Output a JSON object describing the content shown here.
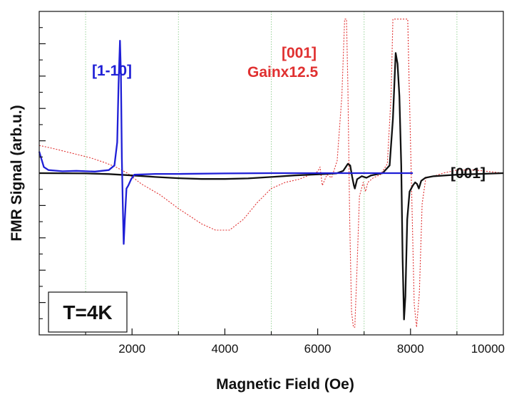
{
  "chart_data": {
    "type": "line",
    "xlabel": "Magnetic Field (Oe)",
    "ylabel": "FMR Signal (arb.u.)",
    "xlim": [
      0,
      10000
    ],
    "ylim": [
      -1.05,
      1.05
    ],
    "x_ticks": [
      2000,
      4000,
      6000,
      8000,
      10000
    ],
    "x_tick_labels": [
      "2000",
      "4000",
      "6000",
      "8000",
      "10000"
    ],
    "x_minor_ticks": [
      1000,
      3000,
      5000,
      7000,
      9000
    ],
    "vertical_gridlines_at": [
      1000,
      3000,
      5000,
      7000,
      9000
    ],
    "gridline_color": "#9ad29a",
    "y_tick_labels_shown": false,
    "series": [
      {
        "name": "[1-10]",
        "color": "#1f1fd6",
        "style": "solid",
        "points": [
          [
            0,
            0.14
          ],
          [
            40,
            0.1
          ],
          [
            100,
            0.04
          ],
          [
            200,
            0.02
          ],
          [
            500,
            0.012
          ],
          [
            800,
            0.015
          ],
          [
            1200,
            0.01
          ],
          [
            1500,
            0.02
          ],
          [
            1620,
            0.05
          ],
          [
            1680,
            0.2
          ],
          [
            1710,
            0.58
          ],
          [
            1740,
            0.86
          ],
          [
            1760,
            0.65
          ],
          [
            1780,
            0.1
          ],
          [
            1800,
            -0.2
          ],
          [
            1820,
            -0.46
          ],
          [
            1845,
            -0.3
          ],
          [
            1880,
            -0.1
          ],
          [
            1920,
            -0.08
          ],
          [
            1980,
            -0.04
          ],
          [
            2050,
            -0.01
          ],
          [
            2500,
            -0.005
          ],
          [
            3000,
            -0.005
          ],
          [
            4000,
            -0.002
          ],
          [
            5000,
            0.0
          ],
          [
            6000,
            0.0
          ],
          [
            7000,
            0.0
          ],
          [
            7700,
            0.0
          ],
          [
            8050,
            0.0
          ]
        ]
      },
      {
        "name": "[001]",
        "color": "#111111",
        "style": "solid",
        "points": [
          [
            0,
            0.0
          ],
          [
            1000,
            -0.002
          ],
          [
            1500,
            -0.006
          ],
          [
            2000,
            -0.015
          ],
          [
            2500,
            -0.025
          ],
          [
            3000,
            -0.033
          ],
          [
            3500,
            -0.038
          ],
          [
            4000,
            -0.038
          ],
          [
            4500,
            -0.034
          ],
          [
            5000,
            -0.025
          ],
          [
            5500,
            -0.015
          ],
          [
            6000,
            -0.008
          ],
          [
            6400,
            -0.002
          ],
          [
            6550,
            0.015
          ],
          [
            6650,
            0.06
          ],
          [
            6700,
            0.05
          ],
          [
            6740,
            -0.02
          ],
          [
            6780,
            -0.08
          ],
          [
            6800,
            -0.1
          ],
          [
            6850,
            -0.04
          ],
          [
            6950,
            -0.02
          ],
          [
            7050,
            -0.03
          ],
          [
            7150,
            -0.015
          ],
          [
            7400,
            0.0
          ],
          [
            7550,
            0.05
          ],
          [
            7620,
            0.35
          ],
          [
            7680,
            0.78
          ],
          [
            7720,
            0.71
          ],
          [
            7760,
            0.5
          ],
          [
            7800,
            0.05
          ],
          [
            7830,
            -0.55
          ],
          [
            7860,
            -0.95
          ],
          [
            7890,
            -0.8
          ],
          [
            7930,
            -0.3
          ],
          [
            7980,
            -0.12
          ],
          [
            8050,
            -0.08
          ],
          [
            8100,
            -0.06
          ],
          [
            8140,
            -0.07
          ],
          [
            8180,
            -0.1
          ],
          [
            8230,
            -0.05
          ],
          [
            8320,
            -0.03
          ],
          [
            8500,
            -0.02
          ],
          [
            9000,
            -0.01
          ],
          [
            10000,
            0.0
          ]
        ]
      },
      {
        "name": "[001] Gainx12.5",
        "color": "#e03030",
        "style": "dotted",
        "points": [
          [
            0,
            0.18
          ],
          [
            300,
            0.16
          ],
          [
            700,
            0.13
          ],
          [
            1100,
            0.1
          ],
          [
            1400,
            0.07
          ],
          [
            1650,
            0.04
          ],
          [
            1900,
            0.0
          ],
          [
            2200,
            -0.07
          ],
          [
            2600,
            -0.14
          ],
          [
            3000,
            -0.23
          ],
          [
            3500,
            -0.33
          ],
          [
            3800,
            -0.37
          ],
          [
            4100,
            -0.37
          ],
          [
            4400,
            -0.3
          ],
          [
            4700,
            -0.19
          ],
          [
            5000,
            -0.1
          ],
          [
            5300,
            -0.06
          ],
          [
            5600,
            -0.04
          ],
          [
            6000,
            0.01
          ],
          [
            6050,
            0.04
          ],
          [
            6100,
            -0.08
          ],
          [
            6200,
            -0.01
          ],
          [
            6300,
            -0.03
          ],
          [
            6420,
            0.08
          ],
          [
            6520,
            0.5
          ],
          [
            6580,
            1.0
          ],
          [
            6620,
            1.0
          ],
          [
            6650,
            0.58
          ],
          [
            6690,
            -0.3
          ],
          [
            6730,
            -0.9
          ],
          [
            6770,
            -1.0
          ],
          [
            6800,
            -1.0
          ],
          [
            6850,
            -0.6
          ],
          [
            6900,
            -0.15
          ],
          [
            6980,
            -0.06
          ],
          [
            7030,
            -0.12
          ],
          [
            7080,
            -0.06
          ],
          [
            7200,
            -0.03
          ],
          [
            7350,
            -0.01
          ],
          [
            7500,
            0.06
          ],
          [
            7580,
            0.5
          ],
          [
            7620,
            1.0
          ],
          [
            7940,
            1.0
          ],
          [
            7970,
            0.6
          ],
          [
            8030,
            -0.2
          ],
          [
            8080,
            -0.85
          ],
          [
            8130,
            -1.0
          ],
          [
            8190,
            -0.78
          ],
          [
            8250,
            -0.2
          ],
          [
            8330,
            -0.03
          ],
          [
            8500,
            -0.02
          ],
          [
            8700,
            0.0
          ],
          [
            9000,
            0.02
          ],
          [
            9400,
            0.02
          ],
          [
            10000,
            0.0
          ]
        ]
      }
    ],
    "annotations": [
      {
        "text": "[1-10]",
        "color": "#1f1fd6"
      },
      {
        "text": "[001]",
        "color": "#e03030"
      },
      {
        "text": "Gainx12.5",
        "color": "#e03030"
      },
      {
        "text": "[001]",
        "color": "#111111"
      }
    ],
    "box_label": "T=4K",
    "grid": true
  }
}
